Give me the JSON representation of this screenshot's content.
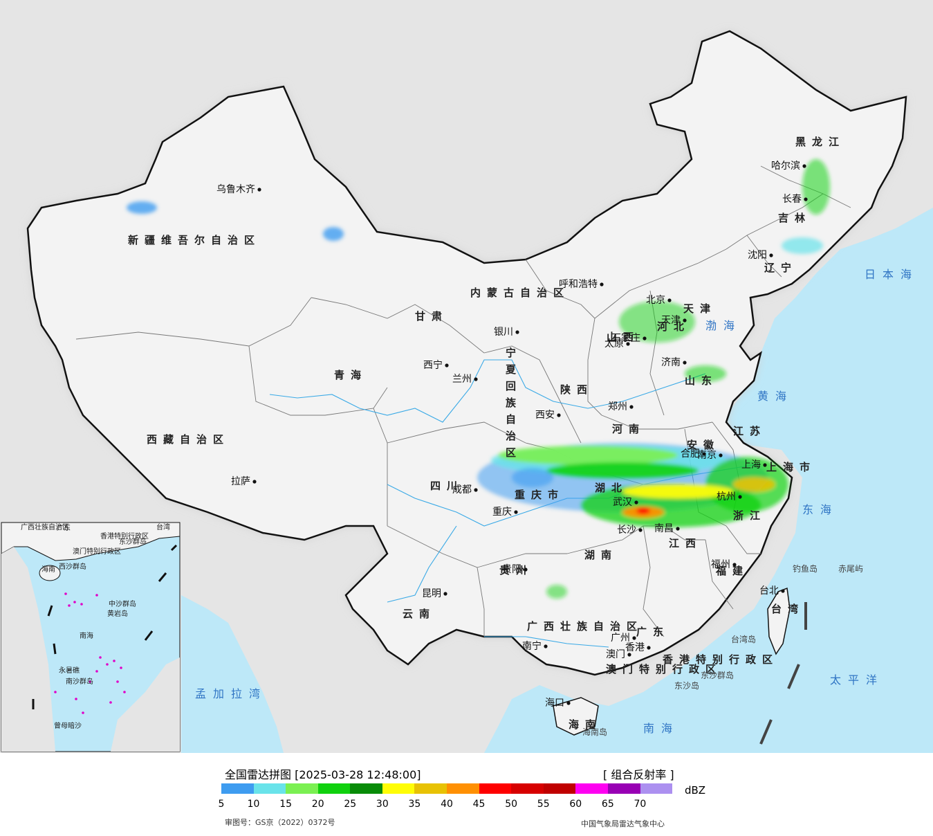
{
  "map": {
    "provinces": [
      {
        "name": "新疆维吾尔自治区"
      },
      {
        "name": "西藏自治区"
      },
      {
        "name": "青海"
      },
      {
        "name": "甘肃"
      },
      {
        "name": "四川"
      },
      {
        "name": "云南"
      },
      {
        "name": "内蒙古自治区"
      },
      {
        "name": "黑龙江"
      },
      {
        "name": "吉林"
      },
      {
        "name": "辽宁"
      },
      {
        "name": "河北"
      },
      {
        "name": "山西"
      },
      {
        "name": "陕西"
      },
      {
        "name": "河南"
      },
      {
        "name": "山东"
      },
      {
        "name": "江苏"
      },
      {
        "name": "安徽"
      },
      {
        "name": "湖北"
      },
      {
        "name": "湖南"
      },
      {
        "name": "江西"
      },
      {
        "name": "浙江"
      },
      {
        "name": "福建"
      },
      {
        "name": "贵州"
      },
      {
        "name": "广东"
      },
      {
        "name": "广西壮族自治区"
      },
      {
        "name": "重庆市"
      },
      {
        "name": "上海市"
      },
      {
        "name": "天津"
      },
      {
        "name": "海南"
      },
      {
        "name": "台湾"
      },
      {
        "name": "宁夏回族自治区"
      },
      {
        "name": "香港特别行政区"
      },
      {
        "name": "澳门特别行政区"
      }
    ],
    "cities": [
      {
        "name": "乌鲁木齐"
      },
      {
        "name": "拉萨"
      },
      {
        "name": "西宁"
      },
      {
        "name": "兰州"
      },
      {
        "name": "银川"
      },
      {
        "name": "呼和浩特"
      },
      {
        "name": "哈尔滨"
      },
      {
        "name": "长春"
      },
      {
        "name": "沈阳"
      },
      {
        "name": "北京"
      },
      {
        "name": "天津"
      },
      {
        "name": "石家庄"
      },
      {
        "name": "太原"
      },
      {
        "name": "济南"
      },
      {
        "name": "郑州"
      },
      {
        "name": "西安"
      },
      {
        "name": "成都"
      },
      {
        "name": "重庆"
      },
      {
        "name": "武汉"
      },
      {
        "name": "合肥"
      },
      {
        "name": "南京"
      },
      {
        "name": "上海"
      },
      {
        "name": "杭州"
      },
      {
        "name": "南昌"
      },
      {
        "name": "长沙"
      },
      {
        "name": "贵阳"
      },
      {
        "name": "昆明"
      },
      {
        "name": "南宁"
      },
      {
        "name": "广州"
      },
      {
        "name": "香港"
      },
      {
        "name": "澳门"
      },
      {
        "name": "福州"
      },
      {
        "name": "台北"
      },
      {
        "name": "海口"
      }
    ],
    "seas": [
      {
        "name": "日本海"
      },
      {
        "name": "渤海"
      },
      {
        "name": "黄海"
      },
      {
        "name": "东海"
      },
      {
        "name": "太平洋"
      },
      {
        "name": "南海"
      },
      {
        "name": "孟加拉湾"
      }
    ],
    "islands": [
      {
        "name": "钓鱼岛"
      },
      {
        "name": "赤尾屿"
      },
      {
        "name": "台湾岛"
      },
      {
        "name": "东沙群岛"
      },
      {
        "name": "东沙岛"
      },
      {
        "name": "海南岛"
      }
    ],
    "inset": {
      "labels": [
        {
          "name": "广西壮族自治区"
        },
        {
          "name": "广东"
        },
        {
          "name": "海南"
        },
        {
          "name": "香港特别行政区"
        },
        {
          "name": "澳门特别行政区"
        },
        {
          "name": "台湾"
        },
        {
          "name": "东沙群岛"
        },
        {
          "name": "西沙群岛"
        },
        {
          "name": "中沙群岛"
        },
        {
          "name": "南海"
        },
        {
          "name": "南沙群岛"
        },
        {
          "name": "黄岩岛"
        },
        {
          "name": "永暑礁"
        },
        {
          "name": "曾母暗沙"
        }
      ]
    },
    "colors": {
      "land": "#f3f3f3",
      "foreign": "#e5e5e5",
      "sea": "#bde8f8",
      "border": "#111111"
    }
  },
  "legend": {
    "title": "全国雷达拼图 [2025-03-28 12:48:00]",
    "product": "[ 组合反射率 ]",
    "unit": "dBZ",
    "colors": [
      "#3e9cf0",
      "#69e3ea",
      "#7bf052",
      "#10d10e",
      "#088b08",
      "#fffd06",
      "#e8c204",
      "#ff9003",
      "#fe0000",
      "#d70000",
      "#c00000",
      "#fe00f1",
      "#9800b4",
      "#ac90f0"
    ],
    "ticks": [
      "5",
      "10",
      "15",
      "20",
      "25",
      "30",
      "35",
      "40",
      "45",
      "50",
      "55",
      "60",
      "65",
      "70"
    ],
    "approval": "审图号：GS京（2022）0372号",
    "source": "中国气象局雷达气象中心"
  }
}
